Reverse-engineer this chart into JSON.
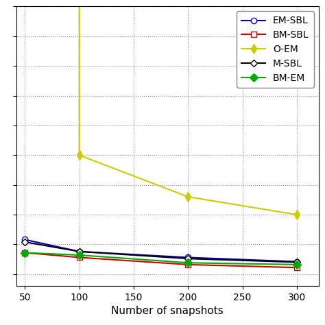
{
  "title": "",
  "xlabel": "Number of snapshots",
  "x_values": [
    50,
    100,
    200,
    300
  ],
  "series": [
    {
      "name": "EM-SBL",
      "y": [
        0.058,
        0.038,
        0.028,
        0.021
      ],
      "color": "#0000CC",
      "marker": "o",
      "markerfacecolor": "white",
      "linewidth": 1.5,
      "markersize": 6
    },
    {
      "name": "BM-SBL",
      "y": [
        0.036,
        0.028,
        0.016,
        0.011
      ],
      "color": "#CC0000",
      "marker": "s",
      "markerfacecolor": "white",
      "linewidth": 1.5,
      "markersize": 6
    },
    {
      "name": "O-EM",
      "y": [
        999,
        0.2,
        0.13,
        0.1
      ],
      "color": "#CCCC00",
      "marker": "d",
      "markerfacecolor": "#CCCC00",
      "linewidth": 1.5,
      "markersize": 7
    },
    {
      "name": "M-SBL",
      "y": [
        0.054,
        0.038,
        0.026,
        0.02
      ],
      "color": "#000000",
      "marker": "D",
      "markerfacecolor": "white",
      "linewidth": 1.5,
      "markersize": 5
    },
    {
      "name": "BM-EM",
      "y": [
        0.036,
        0.032,
        0.019,
        0.016
      ],
      "color": "#00AA00",
      "marker": "D",
      "markerfacecolor": "#00AA00",
      "linewidth": 1.5,
      "markersize": 6
    }
  ],
  "xlim": [
    42,
    320
  ],
  "ylim_linear": [
    -0.02,
    0.45
  ],
  "xticks": [
    50,
    100,
    150,
    200,
    250,
    300
  ],
  "yticks": [
    0.0,
    0.05,
    0.1,
    0.15,
    0.2,
    0.25,
    0.3,
    0.35,
    0.4,
    0.45
  ],
  "grid_linestyle": ":",
  "grid_color": "#888888",
  "grid_linewidth": 0.8,
  "legend_loc": "upper right",
  "legend_fontsize": 10,
  "tick_labelsize": 10,
  "xlabel_fontsize": 11,
  "background_color": "#ffffff",
  "clip_on": true
}
